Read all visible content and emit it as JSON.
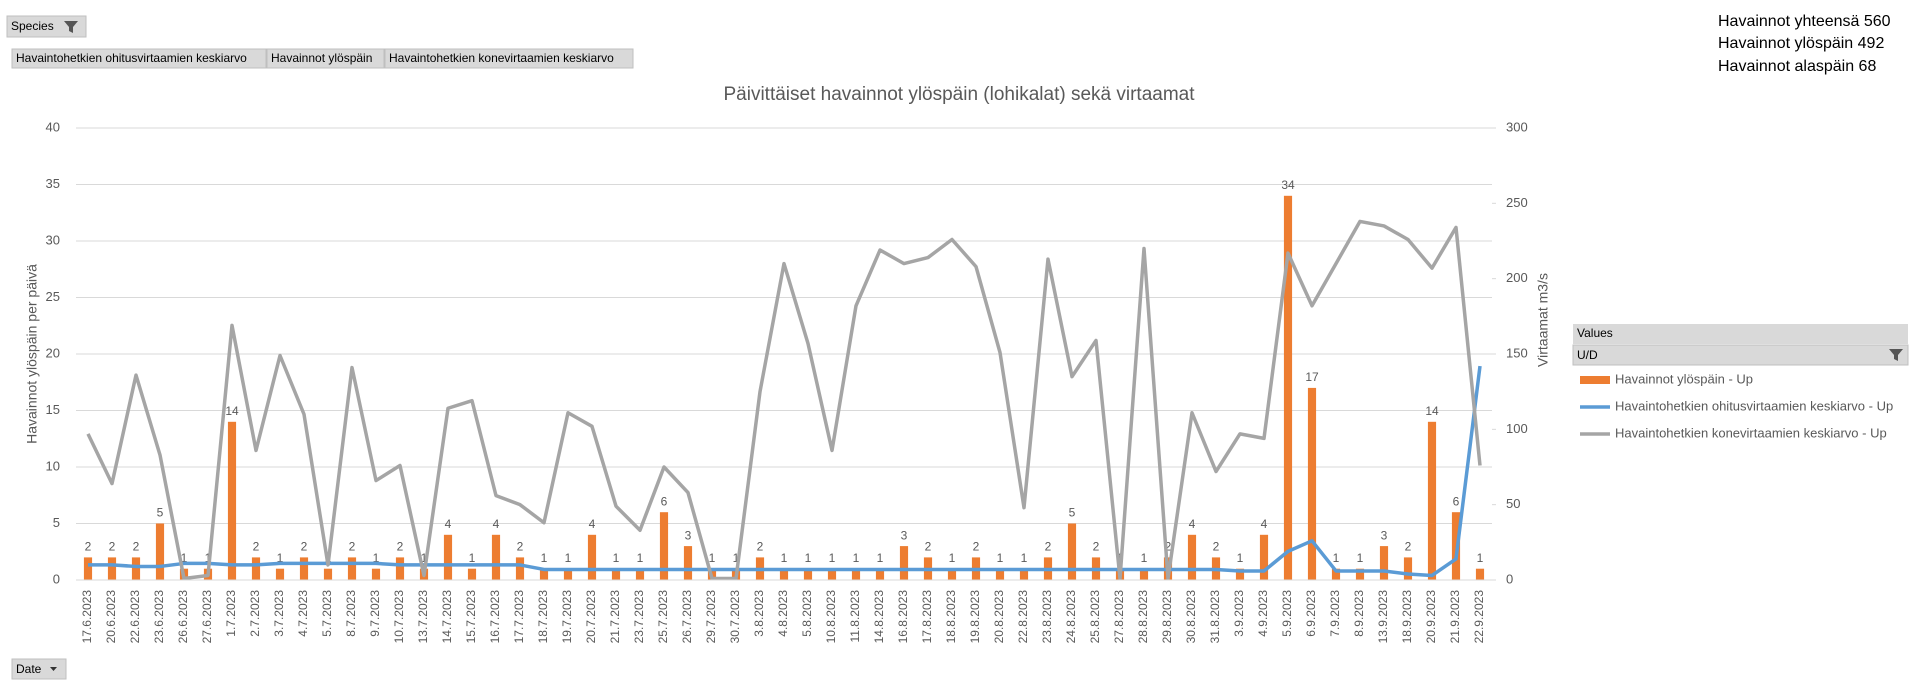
{
  "pivot": {
    "filter_button": "Species",
    "field_buttons": [
      "Havaintohetkien ohitusvirtaamien keskiarvo",
      "Havainnot ylöspäin",
      "Havaintohetkien konevirtaamien keskiarvo"
    ],
    "axis_button": "Date",
    "legend_header": "Values",
    "legend_field": "U/D"
  },
  "summary": [
    "Havainnot yhteensä 560",
    "Havainnot ylöspäin 492",
    "Havainnot alaspäin 68"
  ],
  "chart_data": {
    "type": "bar",
    "title": "Päivittäiset havainnot ylöspäin (lohikalat) sekä virtaamat",
    "y_label": "Havainnot ylöspäin per päivä",
    "y2_label": "Virtaamat m3/s",
    "categories": [
      "17.6.2023",
      "20.6.2023",
      "22.6.2023",
      "23.6.2023",
      "26.6.2023",
      "27.6.2023",
      "1.7.2023",
      "2.7.2023",
      "3.7.2023",
      "4.7.2023",
      "5.7.2023",
      "8.7.2023",
      "9.7.2023",
      "10.7.2023",
      "13.7.2023",
      "14.7.2023",
      "15.7.2023",
      "16.7.2023",
      "17.7.2023",
      "18.7.2023",
      "19.7.2023",
      "20.7.2023",
      "21.7.2023",
      "23.7.2023",
      "25.7.2023",
      "26.7.2023",
      "29.7.2023",
      "30.7.2023",
      "3.8.2023",
      "4.8.2023",
      "5.8.2023",
      "10.8.2023",
      "11.8.2023",
      "14.8.2023",
      "16.8.2023",
      "17.8.2023",
      "18.8.2023",
      "19.8.2023",
      "20.8.2023",
      "22.8.2023",
      "23.8.2023",
      "24.8.2023",
      "25.8.2023",
      "27.8.2023",
      "28.8.2023",
      "29.8.2023",
      "30.8.2023",
      "31.8.2023",
      "3.9.2023",
      "4.9.2023",
      "5.9.2023",
      "6.9.2023",
      "7.9.2023",
      "8.9.2023",
      "13.9.2023",
      "18.9.2023",
      "20.9.2023",
      "21.9.2023",
      "22.9.2023"
    ],
    "series": [
      {
        "name": "Havainnot ylöspäin - Up",
        "type": "bar",
        "axis": "y",
        "color": "#ED7D31",
        "values": [
          2,
          2,
          2,
          5,
          1,
          1,
          14,
          2,
          1,
          2,
          1,
          2,
          1,
          2,
          1,
          4,
          1,
          4,
          2,
          1,
          1,
          4,
          1,
          1,
          6,
          3,
          1,
          1,
          2,
          1,
          1,
          1,
          1,
          1,
          3,
          2,
          1,
          2,
          1,
          1,
          2,
          5,
          2,
          1,
          1,
          2,
          4,
          2,
          1,
          4,
          34,
          17,
          1,
          1,
          3,
          2,
          14,
          6,
          1
        ]
      },
      {
        "name": "Havaintohetkien ohitusvirtaamien keskiarvo - Up",
        "type": "line",
        "axis": "y2",
        "color": "#5B9BD5",
        "values": [
          10,
          10,
          9,
          9,
          11,
          11,
          10,
          10,
          11,
          11,
          11,
          11,
          11,
          10,
          10,
          10,
          10,
          10,
          10,
          7,
          7,
          7,
          7,
          7,
          7,
          7,
          7,
          7,
          7,
          7,
          7,
          7,
          7,
          7,
          7,
          7,
          7,
          7,
          7,
          7,
          7,
          7,
          7,
          7,
          7,
          7,
          7,
          7,
          6,
          6,
          19,
          26,
          6,
          6,
          6,
          4,
          3,
          14,
          142
        ]
      },
      {
        "name": "Havaintohetkien konevirtaamien keskiarvo - Up",
        "type": "line",
        "axis": "y2",
        "color": "#A5A5A5",
        "values": [
          97,
          64,
          136,
          83,
          1,
          3,
          169,
          86,
          149,
          110,
          10,
          141,
          66,
          76,
          3,
          114,
          119,
          56,
          50,
          38,
          111,
          102,
          49,
          33,
          75,
          58,
          1,
          1,
          125,
          210,
          157,
          86,
          182,
          219,
          210,
          214,
          226,
          208,
          151,
          48,
          213,
          135,
          159,
          1,
          220,
          1,
          111,
          72,
          97,
          94,
          217,
          182,
          210,
          238,
          235,
          226,
          207,
          234,
          76
        ]
      }
    ],
    "ylim": [
      0,
      40
    ],
    "yticks": [
      0,
      5,
      10,
      15,
      20,
      25,
      30,
      35,
      40
    ],
    "y2lim": [
      0,
      300
    ],
    "y2ticks": [
      0,
      50,
      100,
      150,
      200,
      250,
      300
    ],
    "grid": true,
    "data_labels": true,
    "legend": "right"
  }
}
